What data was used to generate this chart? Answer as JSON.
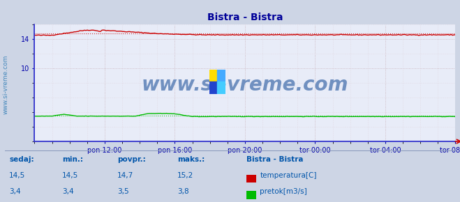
{
  "title": "Bistra - Bistra",
  "bg_color": "#cdd5e5",
  "plot_bg_color": "#e8ecf8",
  "grid_color": "#c8b0b8",
  "grid_minor_color": "#ddd0d8",
  "xlabel_ticks": [
    "pon 12:00",
    "pon 16:00",
    "pon 20:00",
    "tor 00:00",
    "tor 04:00",
    "tor 08:00"
  ],
  "ylim": [
    0,
    16
  ],
  "yticks": [
    10,
    14
  ],
  "temp_color": "#cc0000",
  "flow_color": "#00bb00",
  "blue_line_color": "#3333cc",
  "title_color": "#000099",
  "axis_label_color": "#0000aa",
  "stats_label_color": "#0055aa",
  "watermark_text_color": "#7090c0",
  "sidebar_text_color": "#4488bb",
  "temp_avg": 14.7,
  "flow_avg": 3.5,
  "n_points": 288,
  "figsize": [
    6.59,
    2.9
  ],
  "dpi": 100
}
